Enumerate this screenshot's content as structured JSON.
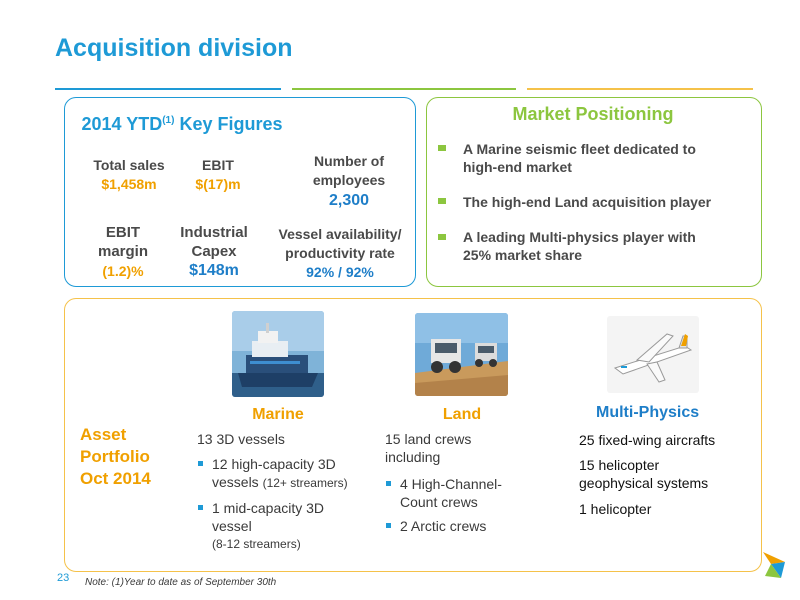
{
  "title": "Acquisition division",
  "colors": {
    "blue": "#1e9ad6",
    "green": "#8cc63f",
    "orange": "#f0a000",
    "navy": "#1e7ec8",
    "yellow": "#f5c24a"
  },
  "key_figures": {
    "title": "2014 YTD",
    "title_sup": "(1)",
    "title_suffix": " Key Figures",
    "total_sales_label": "Total sales",
    "total_sales_value": "$1,458m",
    "ebit_label": "EBIT",
    "ebit_value": "$(17)m",
    "employees_label_1": "Number of",
    "employees_label_2": "employees",
    "employees_value": "2,300",
    "ebit_margin_label_1": "EBIT",
    "ebit_margin_label_2": "margin",
    "ebit_margin_value": "(1.2)%",
    "capex_label_1": "Industrial",
    "capex_label_2": "Capex",
    "capex_value": "$148m",
    "vessel_label_1": "Vessel availability/",
    "vessel_label_2": "productivity rate",
    "vessel_value": "92% / 92%"
  },
  "market_positioning": {
    "title": "Market Positioning",
    "items": [
      {
        "line1": "A Marine seismic fleet dedicated to",
        "line2": "high-end market"
      },
      {
        "line1": "The high-end Land acquisition player",
        "line2": ""
      },
      {
        "line1": "A leading Multi-physics player with",
        "line2": "25% market share"
      }
    ]
  },
  "asset_portfolio": {
    "label_1": "Asset",
    "label_2": "Portfolio",
    "label_3": "Oct 2014",
    "marine": {
      "title": "Marine",
      "headline": "13 3D vessels",
      "b1_line1": "12 high-capacity 3D",
      "b1_line2": "vessels",
      "b1_small": "(12+ streamers)",
      "b2_line1": "1 mid-capacity 3D",
      "b2_line2": "vessel",
      "b2_small": "(8-12 streamers)"
    },
    "land": {
      "title": "Land",
      "headline_1": "15 land crews",
      "headline_2": "including",
      "b1_line1": "4 High-Channel-",
      "b1_line2": "Count crews",
      "b2": "2 Arctic crews"
    },
    "multi_physics": {
      "title": "Multi-Physics",
      "line1": "25 fixed-wing aircrafts",
      "line2a": "15 helicopter",
      "line2b": "geophysical systems",
      "line3": "1 helicopter"
    }
  },
  "page_number": "23",
  "note": "Note: (1)Year to date as of September 30th"
}
